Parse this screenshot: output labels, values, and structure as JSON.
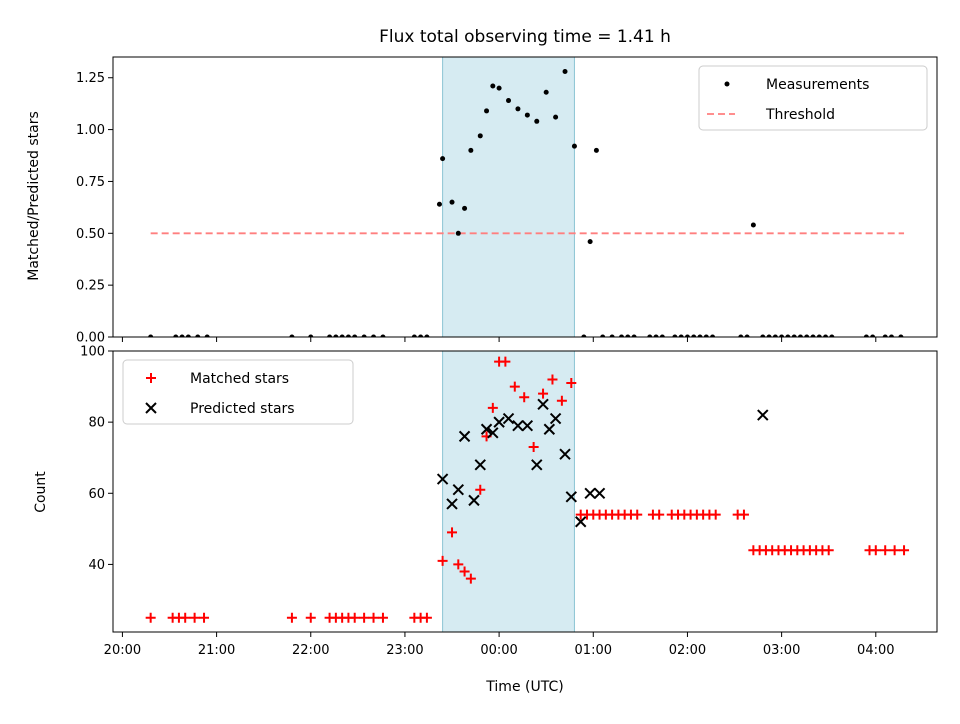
{
  "chart_data": [
    {
      "type": "scatter",
      "title": "Flux total observing time = 1.41 h",
      "xlabel": "",
      "ylabel": "Matched/Predicted stars",
      "ylim": [
        0,
        1.35
      ],
      "xlim": [
        "19:54",
        "04:39"
      ],
      "yticks": [
        "0.00",
        "0.25",
        "0.50",
        "0.75",
        "1.00",
        "1.25"
      ],
      "legend_position": "top-right",
      "highlight_span": [
        "23:24",
        "00:48"
      ],
      "threshold": {
        "name": "Threshold",
        "value": 0.5,
        "color": "#ff7f7f",
        "x_range": [
          "20:18",
          "04:18"
        ]
      },
      "series": [
        {
          "name": "Measurements",
          "color": "#000000",
          "x": [
            "20:18",
            "20:34",
            "20:38",
            "20:42",
            "20:48",
            "20:54",
            "21:48",
            "22:00",
            "22:12",
            "22:16",
            "22:20",
            "22:24",
            "22:28",
            "22:34",
            "22:40",
            "22:46",
            "23:06",
            "23:10",
            "23:14",
            "23:22",
            "23:24",
            "23:30",
            "23:34",
            "23:38",
            "23:42",
            "23:48",
            "23:52",
            "23:56",
            "00:00",
            "00:06",
            "00:12",
            "00:18",
            "00:24",
            "00:30",
            "00:36",
            "00:42",
            "00:48",
            "00:54",
            "00:58",
            "01:02",
            "01:06",
            "01:12",
            "01:18",
            "01:22",
            "01:26",
            "01:36",
            "01:40",
            "01:44",
            "01:52",
            "01:56",
            "02:00",
            "02:04",
            "02:08",
            "02:12",
            "02:16",
            "02:34",
            "02:38",
            "02:42",
            "02:48",
            "02:52",
            "02:56",
            "03:00",
            "03:04",
            "03:08",
            "03:12",
            "03:16",
            "03:20",
            "03:24",
            "03:28",
            "03:32",
            "03:54",
            "03:58",
            "04:06",
            "04:10",
            "04:16"
          ],
          "y": [
            0,
            0,
            0,
            0,
            0,
            0,
            0,
            0,
            0,
            0,
            0,
            0,
            0,
            0,
            0,
            0,
            0,
            0,
            0,
            0.64,
            0.86,
            0.65,
            0.5,
            0.62,
            0.9,
            0.97,
            1.09,
            1.21,
            1.2,
            1.14,
            1.1,
            1.07,
            1.04,
            1.18,
            1.06,
            1.28,
            0.92,
            0,
            0.46,
            0.9,
            0,
            0,
            0,
            0,
            0,
            0,
            0,
            0,
            0,
            0,
            0,
            0,
            0,
            0,
            0,
            0,
            0,
            0.54,
            0,
            0,
            0,
            0,
            0,
            0,
            0,
            0,
            0,
            0,
            0,
            0,
            0,
            0,
            0,
            0,
            0
          ]
        }
      ]
    },
    {
      "type": "scatter",
      "title": "",
      "xlabel": "Time (UTC)",
      "ylabel": "Count",
      "ylim": [
        21,
        100
      ],
      "xlim": [
        "19:54",
        "04:39"
      ],
      "xticks": [
        "20:00",
        "21:00",
        "22:00",
        "23:00",
        "00:00",
        "01:00",
        "02:00",
        "03:00",
        "04:00"
      ],
      "yticks": [
        "40",
        "60",
        "80",
        "100"
      ],
      "legend_position": "top-left",
      "highlight_span": [
        "23:24",
        "00:48"
      ],
      "series": [
        {
          "name": "Matched stars",
          "marker": "+",
          "color": "#ff0000",
          "x": [
            "20:18",
            "20:32",
            "20:36",
            "20:40",
            "20:46",
            "20:52",
            "21:48",
            "22:00",
            "22:12",
            "22:16",
            "22:20",
            "22:24",
            "22:28",
            "22:34",
            "22:40",
            "22:46",
            "23:06",
            "23:10",
            "23:14",
            "23:24",
            "23:30",
            "23:34",
            "23:38",
            "23:42",
            "23:48",
            "23:52",
            "23:56",
            "00:00",
            "00:04",
            "00:10",
            "00:16",
            "00:22",
            "00:28",
            "00:34",
            "00:40",
            "00:46",
            "00:52",
            "00:56",
            "01:00",
            "01:04",
            "01:08",
            "01:12",
            "01:16",
            "01:20",
            "01:24",
            "01:28",
            "01:38",
            "01:42",
            "01:50",
            "01:54",
            "01:58",
            "02:02",
            "02:06",
            "02:10",
            "02:14",
            "02:18",
            "02:32",
            "02:36",
            "02:42",
            "02:46",
            "02:50",
            "02:54",
            "02:58",
            "03:02",
            "03:06",
            "03:10",
            "03:14",
            "03:18",
            "03:22",
            "03:26",
            "03:30",
            "03:56",
            "04:00",
            "04:06",
            "04:12",
            "04:18"
          ],
          "y": [
            25,
            25,
            25,
            25,
            25,
            25,
            25,
            25,
            25,
            25,
            25,
            25,
            25,
            25,
            25,
            25,
            25,
            25,
            25,
            41,
            49,
            40,
            38,
            36,
            61,
            76,
            84,
            97,
            97,
            90,
            87,
            73,
            88,
            92,
            86,
            91,
            54,
            54,
            54,
            54,
            54,
            54,
            54,
            54,
            54,
            54,
            54,
            54,
            54,
            54,
            54,
            54,
            54,
            54,
            54,
            54,
            54,
            54,
            44,
            44,
            44,
            44,
            44,
            44,
            44,
            44,
            44,
            44,
            44,
            44,
            44,
            44,
            44,
            44,
            44,
            44
          ]
        },
        {
          "name": "Predicted stars",
          "marker": "x",
          "color": "#000000",
          "x": [
            "23:24",
            "23:30",
            "23:34",
            "23:38",
            "23:44",
            "23:48",
            "23:52",
            "23:56",
            "00:00",
            "00:06",
            "00:12",
            "00:18",
            "00:24",
            "00:28",
            "00:32",
            "00:36",
            "00:42",
            "00:46",
            "00:52",
            "00:58",
            "01:04",
            "02:48"
          ],
          "y": [
            64,
            57,
            61,
            76,
            58,
            68,
            78,
            77,
            80,
            81,
            79,
            79,
            68,
            85,
            78,
            81,
            71,
            59,
            52,
            60,
            60,
            82
          ]
        }
      ]
    }
  ]
}
